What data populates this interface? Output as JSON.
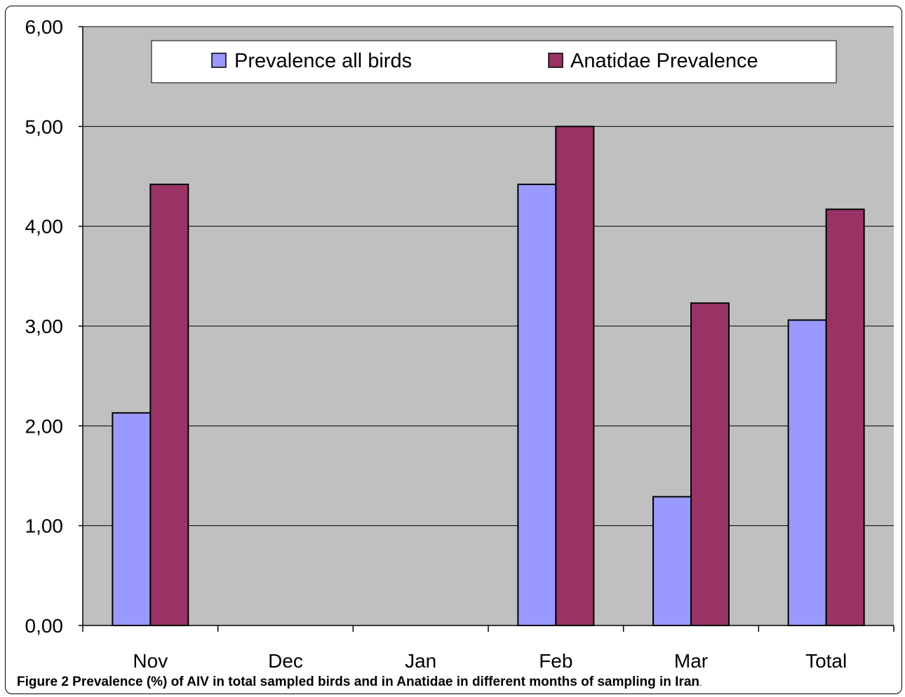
{
  "chart_data": {
    "type": "bar",
    "categories": [
      "Nov",
      "Dec",
      "Jan",
      "Feb",
      "Mar",
      "Total"
    ],
    "series": [
      {
        "name": "Prevalence all birds",
        "color": "#9999ff",
        "values": [
          2.13,
          0,
          0,
          4.42,
          1.29,
          3.06
        ]
      },
      {
        "name": "Anatidae Prevalence",
        "color": "#993366",
        "values": [
          4.42,
          0,
          0,
          5.0,
          3.23,
          4.17
        ]
      }
    ],
    "yticks": [
      "0,00",
      "1,00",
      "2,00",
      "3,00",
      "4,00",
      "5,00",
      "6,00"
    ],
    "ylim": [
      0,
      6
    ],
    "grid": true,
    "legend_position": "top",
    "plot_background": "#c0c0c0",
    "title": "",
    "xlabel": "",
    "ylabel": ""
  },
  "caption": {
    "lead": "Figure 2",
    "text": " Prevalence (%) of AIV in total sampled birds and in Anatidae in different months of sampling in Iran",
    "tail": "."
  }
}
